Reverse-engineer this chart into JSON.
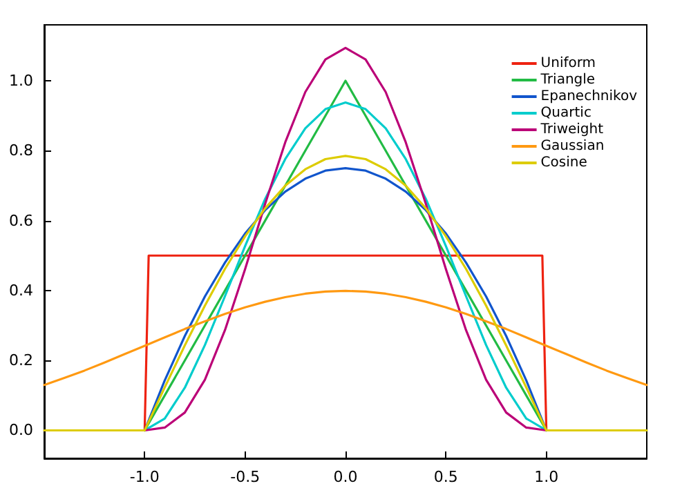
{
  "chart_data": {
    "type": "line",
    "x": [
      -1.5,
      -1.4,
      -1.3,
      -1.2,
      -1.1,
      -1.0,
      -0.9,
      -0.8,
      -0.7,
      -0.6,
      -0.5,
      -0.4,
      -0.3,
      -0.2,
      -0.1,
      0,
      0.1,
      0.2,
      0.3,
      0.4,
      0.5,
      0.6,
      0.7,
      0.8,
      0.9,
      1.0,
      1.1,
      1.2,
      1.3,
      1.4,
      1.5
    ],
    "series": [
      {
        "name": "Uniform",
        "color": "#ee2211",
        "x": [
          -1.0,
          -0.98,
          0.98,
          1.0
        ],
        "values": [
          0,
          0.5,
          0.5,
          0
        ]
      },
      {
        "name": "Triangle",
        "color": "#22bb44",
        "values": [
          null,
          null,
          null,
          null,
          null,
          0,
          0.1,
          0.2,
          0.3,
          0.4,
          0.5,
          0.6,
          0.7,
          0.8,
          0.9,
          1.0,
          0.9,
          0.8,
          0.7,
          0.6,
          0.5,
          0.4,
          0.3,
          0.2,
          0.1,
          0,
          null,
          null,
          null,
          null,
          null
        ]
      },
      {
        "name": "Epanechnikov",
        "color": "#1155cc",
        "values": [
          null,
          null,
          null,
          null,
          null,
          0,
          0.143,
          0.27,
          0.383,
          0.48,
          0.563,
          0.63,
          0.683,
          0.72,
          0.743,
          0.75,
          0.743,
          0.72,
          0.683,
          0.63,
          0.563,
          0.48,
          0.383,
          0.27,
          0.143,
          0,
          null,
          null,
          null,
          null,
          null
        ]
      },
      {
        "name": "Quartic",
        "color": "#00cccc",
        "values": [
          null,
          null,
          null,
          null,
          null,
          0,
          0.034,
          0.122,
          0.244,
          0.384,
          0.527,
          0.662,
          0.776,
          0.864,
          0.919,
          0.938,
          0.919,
          0.864,
          0.776,
          0.662,
          0.527,
          0.384,
          0.244,
          0.122,
          0.034,
          0,
          null,
          null,
          null,
          null,
          null
        ]
      },
      {
        "name": "Triweight",
        "color": "#bb0077",
        "values": [
          null,
          null,
          null,
          null,
          null,
          0,
          0.008,
          0.051,
          0.145,
          0.287,
          0.461,
          0.648,
          0.824,
          0.968,
          1.061,
          1.094,
          1.061,
          0.968,
          0.824,
          0.648,
          0.461,
          0.287,
          0.145,
          0.051,
          0.008,
          0,
          null,
          null,
          null,
          null,
          null
        ]
      },
      {
        "name": "Gaussian",
        "color": "#ff9911",
        "values": [
          0.13,
          0.15,
          0.171,
          0.194,
          0.218,
          0.242,
          0.266,
          0.29,
          0.312,
          0.333,
          0.352,
          0.368,
          0.381,
          0.391,
          0.397,
          0.399,
          0.397,
          0.391,
          0.381,
          0.368,
          0.352,
          0.333,
          0.312,
          0.29,
          0.266,
          0.242,
          0.218,
          0.194,
          0.171,
          0.15,
          0.13
        ]
      },
      {
        "name": "Cosine",
        "color": "#ddcc00",
        "values": [
          0,
          0,
          0,
          0,
          0,
          0,
          0.123,
          0.243,
          0.357,
          0.462,
          0.555,
          0.635,
          0.7,
          0.747,
          0.776,
          0.785,
          0.776,
          0.747,
          0.7,
          0.635,
          0.555,
          0.462,
          0.357,
          0.243,
          0.123,
          0,
          0,
          0,
          0,
          0,
          0
        ]
      }
    ],
    "xlim": [
      -1.5,
      1.5
    ],
    "xticks": [
      {
        "value": -1,
        "label": "-1.0"
      },
      {
        "value": -0.5,
        "label": "-0.5"
      },
      {
        "value": 0,
        "label": "0.0"
      },
      {
        "value": 0.5,
        "label": "0.5"
      },
      {
        "value": 1,
        "label": "1.0"
      }
    ],
    "ylim": [
      -0.08,
      1.16
    ],
    "yticks": [
      {
        "value": 0,
        "label": "0.0"
      },
      {
        "value": 0.2,
        "label": "0.2"
      },
      {
        "value": 0.4,
        "label": "0.4"
      },
      {
        "value": 0.6,
        "label": "0.6"
      },
      {
        "value": 0.8,
        "label": "0.8"
      },
      {
        "value": 1,
        "label": "1.0"
      }
    ],
    "grid": false,
    "legend": "top right",
    "marker": "none",
    "line_style": "solid"
  }
}
